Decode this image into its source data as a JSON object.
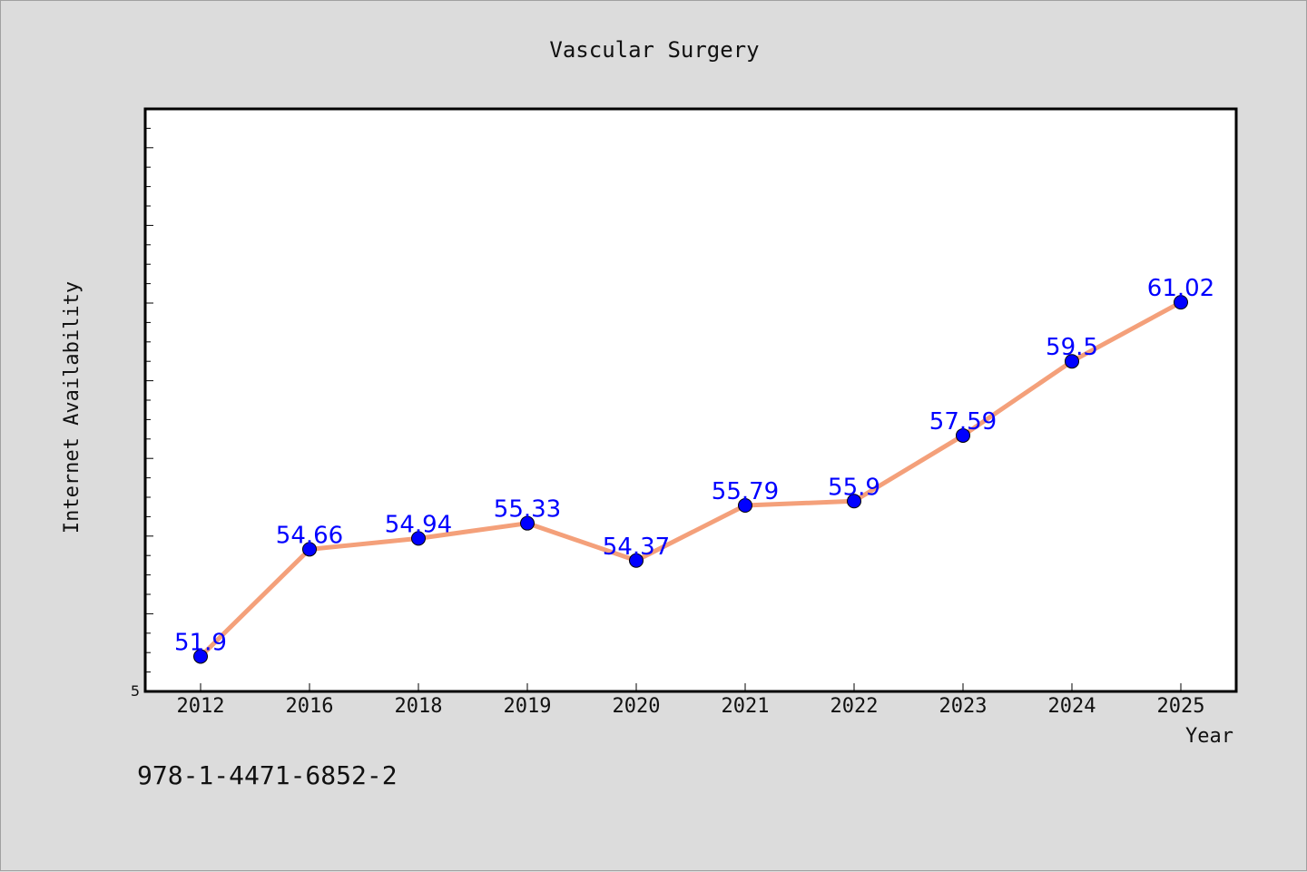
{
  "chart_data": {
    "type": "line",
    "title": "Vascular Surgery",
    "xlabel": "Year",
    "ylabel": "Internet Availability",
    "categories": [
      "2012",
      "2016",
      "2018",
      "2019",
      "2020",
      "2021",
      "2022",
      "2023",
      "2024",
      "2025"
    ],
    "values": [
      51.9,
      54.66,
      54.94,
      55.33,
      54.37,
      55.79,
      55.9,
      57.59,
      59.5,
      61.02
    ],
    "data_labels": [
      "51.9",
      "54.66",
      "54.94",
      "55.33",
      "54.37",
      "55.79",
      "55.9",
      "57.59",
      "59.5",
      "61.02"
    ],
    "y_tick_labels": [
      "5"
    ],
    "ylim": [
      51.0,
      66.0
    ],
    "grid": false,
    "line_color": "#f4a07a",
    "marker_color": "#0000ff",
    "label_color": "#0000ff"
  },
  "footer_text": "978-1-4471-6852-2"
}
